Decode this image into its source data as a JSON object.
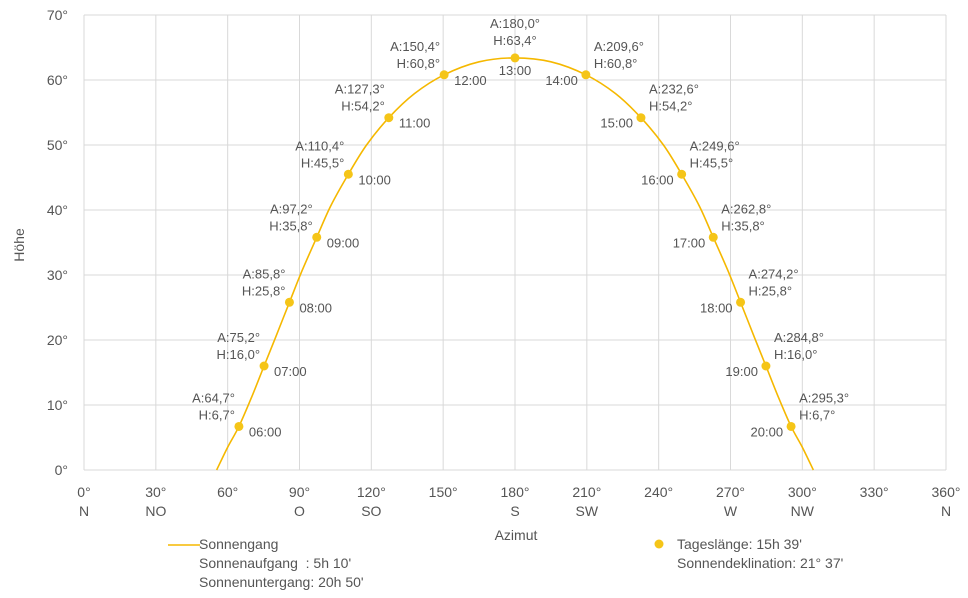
{
  "chart_data": {
    "type": "line",
    "title": "",
    "xlabel": "Azimut",
    "ylabel": "Höhe",
    "xlim": [
      0,
      360
    ],
    "ylim": [
      0,
      70
    ],
    "grid": true,
    "x_ticks": [
      {
        "value": 0,
        "label": "0°",
        "dir": "N"
      },
      {
        "value": 30,
        "label": "30°",
        "dir": "NO"
      },
      {
        "value": 60,
        "label": "60°",
        "dir": ""
      },
      {
        "value": 90,
        "label": "90°",
        "dir": "O"
      },
      {
        "value": 120,
        "label": "120°",
        "dir": "SO"
      },
      {
        "value": 150,
        "label": "150°",
        "dir": ""
      },
      {
        "value": 180,
        "label": "180°",
        "dir": "S"
      },
      {
        "value": 210,
        "label": "210°",
        "dir": "SW"
      },
      {
        "value": 240,
        "label": "240°",
        "dir": ""
      },
      {
        "value": 270,
        "label": "270°",
        "dir": "W"
      },
      {
        "value": 300,
        "label": "300°",
        "dir": "NW"
      },
      {
        "value": 330,
        "label": "330°",
        "dir": ""
      },
      {
        "value": 360,
        "label": "360°",
        "dir": "N"
      }
    ],
    "y_ticks": [
      {
        "value": 0,
        "label": "0°"
      },
      {
        "value": 10,
        "label": "10°"
      },
      {
        "value": 20,
        "label": "20°"
      },
      {
        "value": 30,
        "label": "30°"
      },
      {
        "value": 40,
        "label": "40°"
      },
      {
        "value": 50,
        "label": "50°"
      },
      {
        "value": 60,
        "label": "60°"
      },
      {
        "value": 70,
        "label": "70°"
      }
    ],
    "line_color": "#f5b800",
    "point_color": "#f5c518",
    "curve": [
      [
        55.4,
        0
      ],
      [
        60,
        3.5
      ],
      [
        64.7,
        6.7
      ],
      [
        70,
        11.2
      ],
      [
        75.2,
        16.0
      ],
      [
        80,
        20.4
      ],
      [
        85.8,
        25.8
      ],
      [
        91,
        30.6
      ],
      [
        97.2,
        35.8
      ],
      [
        103,
        40.6
      ],
      [
        110.4,
        45.5
      ],
      [
        118,
        50
      ],
      [
        127.3,
        54.2
      ],
      [
        138,
        57.9
      ],
      [
        150.4,
        60.8
      ],
      [
        165,
        62.8
      ],
      [
        180,
        63.4
      ],
      [
        195,
        62.8
      ],
      [
        209.6,
        60.8
      ],
      [
        222,
        57.9
      ],
      [
        232.6,
        54.2
      ],
      [
        242,
        50
      ],
      [
        249.6,
        45.5
      ],
      [
        257,
        40.6
      ],
      [
        262.8,
        35.8
      ],
      [
        269,
        30.6
      ],
      [
        274.2,
        25.8
      ],
      [
        280,
        20.4
      ],
      [
        284.8,
        16.0
      ],
      [
        290,
        11.2
      ],
      [
        295.3,
        6.7
      ],
      [
        300,
        3.5
      ],
      [
        304.6,
        0
      ]
    ],
    "points": [
      {
        "az": 64.7,
        "h": 6.7,
        "time": "06:00",
        "label_a": "A:64,7°",
        "label_h": "H:6,7°",
        "side": "left"
      },
      {
        "az": 75.2,
        "h": 16.0,
        "time": "07:00",
        "label_a": "A:75,2°",
        "label_h": "H:16,0°",
        "side": "left"
      },
      {
        "az": 85.8,
        "h": 25.8,
        "time": "08:00",
        "label_a": "A:85,8°",
        "label_h": "H:25,8°",
        "side": "left"
      },
      {
        "az": 97.2,
        "h": 35.8,
        "time": "09:00",
        "label_a": "A:97,2°",
        "label_h": "H:35,8°",
        "side": "left"
      },
      {
        "az": 110.4,
        "h": 45.5,
        "time": "10:00",
        "label_a": "A:110,4°",
        "label_h": "H:45,5°",
        "side": "left"
      },
      {
        "az": 127.3,
        "h": 54.2,
        "time": "11:00",
        "label_a": "A:127,3°",
        "label_h": "H:54,2°",
        "side": "left"
      },
      {
        "az": 150.4,
        "h": 60.8,
        "time": "12:00",
        "label_a": "A:150,4°",
        "label_h": "H:60,8°",
        "side": "left"
      },
      {
        "az": 180.0,
        "h": 63.4,
        "time": "13:00",
        "label_a": "A:180,0°",
        "label_h": "H:63,4°",
        "side": "center"
      },
      {
        "az": 209.6,
        "h": 60.8,
        "time": "14:00",
        "label_a": "A:209,6°",
        "label_h": "H:60,8°",
        "side": "right"
      },
      {
        "az": 232.6,
        "h": 54.2,
        "time": "15:00",
        "label_a": "A:232,6°",
        "label_h": "H:54,2°",
        "side": "right"
      },
      {
        "az": 249.6,
        "h": 45.5,
        "time": "16:00",
        "label_a": "A:249,6°",
        "label_h": "H:45,5°",
        "side": "right"
      },
      {
        "az": 262.8,
        "h": 35.8,
        "time": "17:00",
        "label_a": "A:262,8°",
        "label_h": "H:35,8°",
        "side": "right"
      },
      {
        "az": 274.2,
        "h": 25.8,
        "time": "18:00",
        "label_a": "A:274,2°",
        "label_h": "H:25,8°",
        "side": "right"
      },
      {
        "az": 284.8,
        "h": 16.0,
        "time": "19:00",
        "label_a": "A:284,8°",
        "label_h": "H:16,0°",
        "side": "right"
      },
      {
        "az": 295.3,
        "h": 6.7,
        "time": "20:00",
        "label_a": "A:295,3°",
        "label_h": "H:6,7°",
        "side": "right"
      }
    ]
  },
  "legend": {
    "line_name": "Sonnengang",
    "sunrise": "Sonnenaufgang  : 5h 10'",
    "sunset": "Sonnenuntergang: 20h 50'",
    "day_length": "Tageslänge: 15h 39'",
    "declination": "Sonnendeklination: 21° 37'"
  }
}
